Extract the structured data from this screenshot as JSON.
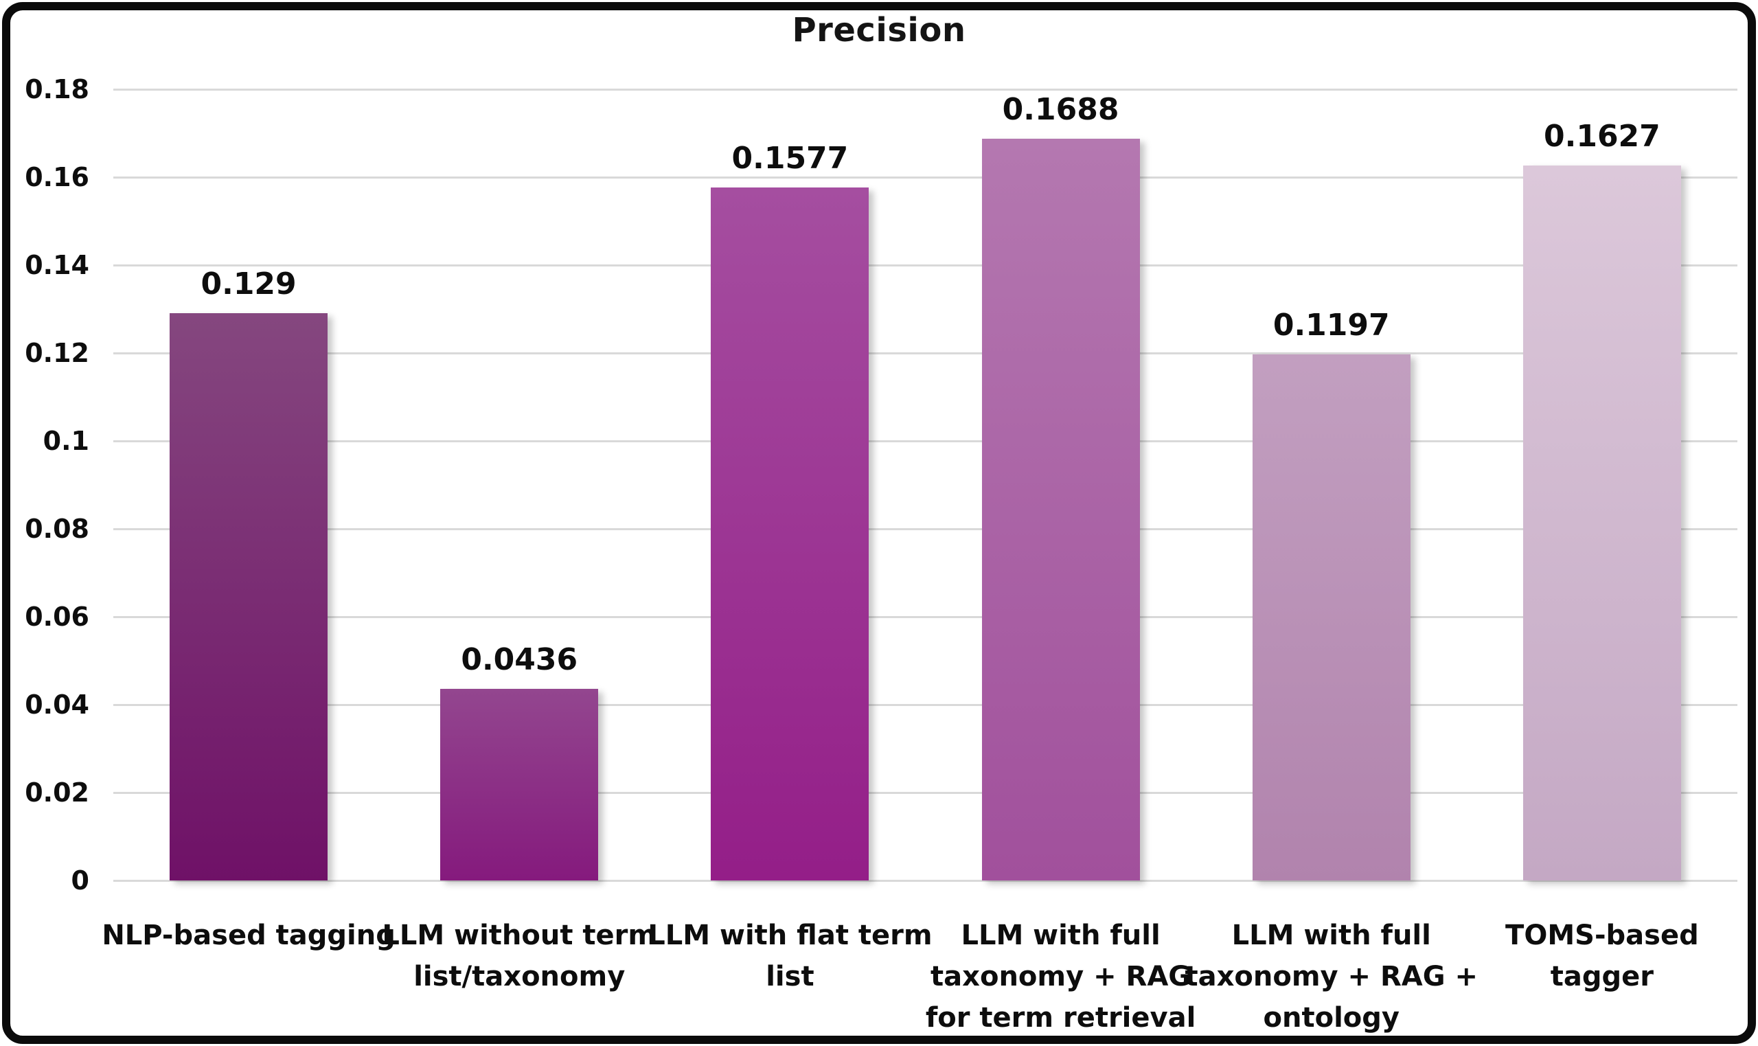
{
  "chart_data": {
    "type": "bar",
    "title": "Precision",
    "categories": [
      "NLP-based tagging",
      "LLM without term list/taxonomy",
      "LLM with flat term list",
      "LLM with full taxonomy + RAG for term retrieval",
      "LLM with full taxonomy + RAG + ontology",
      "TOMS-based tagger"
    ],
    "category_lines": [
      [
        "NLP-based tagging"
      ],
      [
        "LLM without term",
        "list/taxonomy"
      ],
      [
        "LLM with flat term",
        "list"
      ],
      [
        "LLM with full",
        "taxonomy + RAG",
        "for term retrieval"
      ],
      [
        "LLM with full",
        "taxonomy + RAG +",
        "ontology"
      ],
      [
        "TOMS-based",
        "tagger"
      ]
    ],
    "values": [
      0.129,
      0.0436,
      0.1577,
      0.1688,
      0.1197,
      0.1627
    ],
    "value_labels": [
      "0.129",
      "0.0436",
      "0.1577",
      "0.1688",
      "0.1197",
      "0.1627"
    ],
    "bar_gradients": [
      {
        "top": "#85477f",
        "bottom": "#6f1167"
      },
      {
        "top": "#93468f",
        "bottom": "#851a7d"
      },
      {
        "top": "#a54ea0",
        "bottom": "#941e88"
      },
      {
        "top": "#b478b0",
        "bottom": "#a1509c"
      },
      {
        "top": "#c29fc0",
        "bottom": "#b183ad"
      },
      {
        "top": "#dcc8da",
        "bottom": "#c4a8c4"
      }
    ],
    "xlabel": "",
    "ylabel": "",
    "ylim": [
      0,
      0.18
    ],
    "y_axis": {
      "tick_labels": [
        "0.18",
        "0.16",
        "0.14",
        "0.12",
        "0.1",
        "0.08",
        "0.06",
        "0.04",
        "0.02",
        "0"
      ],
      "tick_values": [
        0.18,
        0.16,
        0.14,
        0.12,
        0.1,
        0.08,
        0.06,
        0.04,
        0.02,
        0
      ]
    },
    "grid": true,
    "grid_color": "#d9d9d9",
    "legend": false,
    "frame_color": "#0b0b0b",
    "background_color": "#ffffff",
    "text_color": "#0d0d0d"
  }
}
